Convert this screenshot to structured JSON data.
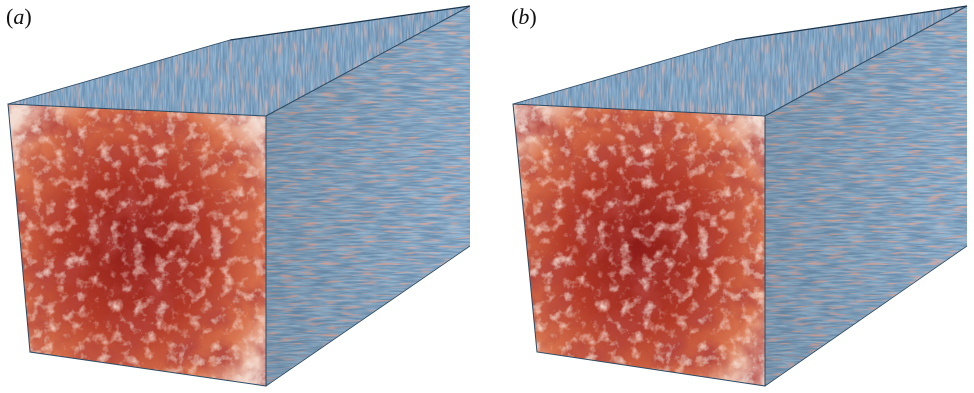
{
  "figure": {
    "panels": [
      {
        "id": "a",
        "label_open": "(",
        "label_letter": "a",
        "label_close": ")"
      },
      {
        "id": "b",
        "label_open": "(",
        "label_letter": "b",
        "label_close": ")"
      }
    ],
    "colors": {
      "surface_blue": "#5e86a8",
      "surface_dark_blue": "#1f4f78",
      "surface_red": "#c8684a",
      "face_pale": "#f2ddd2",
      "face_mid": "#d86f4f",
      "face_dark": "#7a1414",
      "edge": "#2c4a63"
    }
  }
}
